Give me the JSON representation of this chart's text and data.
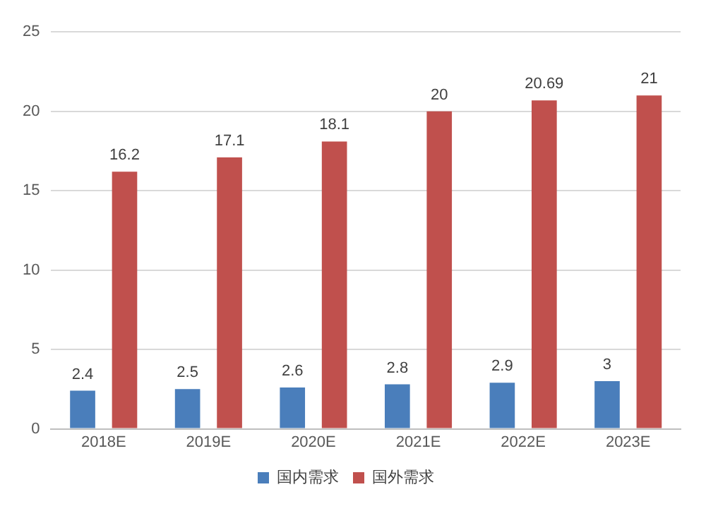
{
  "chart_data": {
    "type": "bar",
    "categories": [
      "2018E",
      "2019E",
      "2020E",
      "2021E",
      "2022E",
      "2023E"
    ],
    "series": [
      {
        "name": "国内需求",
        "color": "#4a7ebb",
        "values": [
          2.4,
          2.5,
          2.6,
          2.8,
          2.9,
          3
        ]
      },
      {
        "name": "国外需求",
        "color": "#c0504d",
        "values": [
          16.2,
          17.1,
          18.1,
          20,
          20.69,
          21
        ]
      }
    ],
    "ylim": [
      0,
      25
    ],
    "yticks": [
      0,
      5,
      10,
      15,
      20,
      25
    ],
    "grid": "y",
    "legend": "bottom",
    "data_labels": true
  }
}
